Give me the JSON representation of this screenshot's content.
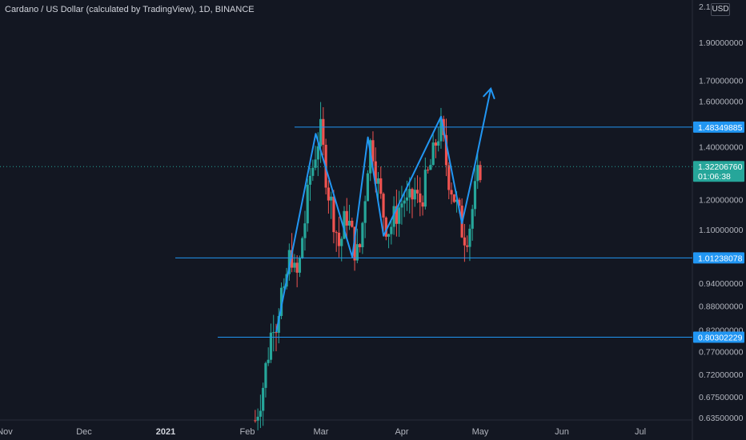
{
  "title": "Cardano / US Dollar (calculated by TradingView), 1D, BINANCE",
  "currency_button": "USD",
  "price_axis": {
    "ticks": [
      "2.1",
      "1.90000000",
      "1.70000000",
      "1.60000000",
      "1.40000000",
      "1.20000000",
      "1.10000000",
      "0.94000000",
      "0.88000000",
      "0.82000000",
      "0.77000000",
      "0.72000000",
      "0.67500000",
      "0.63500000"
    ],
    "tick_values": [
      2.1,
      1.9,
      1.7,
      1.6,
      1.4,
      1.2,
      1.1,
      0.94,
      0.88,
      0.82,
      0.77,
      0.72,
      0.675,
      0.635
    ]
  },
  "time_axis": {
    "ticks": [
      "Nov",
      "Dec",
      "2021",
      "Feb",
      "Mar",
      "Apr",
      "May",
      "Jun",
      "Jul"
    ]
  },
  "price_labels": [
    {
      "text": "1.48349885",
      "value": 1.48349885,
      "kind": "level"
    },
    {
      "text": "1.32206760",
      "sub": "01:06:38",
      "value": 1.3220676,
      "kind": "current"
    },
    {
      "text": "1.01238078",
      "value": 1.01238078,
      "kind": "level"
    },
    {
      "text": "0.80302229",
      "value": 0.80302229,
      "kind": "level"
    }
  ],
  "colors": {
    "background": "#131722",
    "bull": "#26a69a",
    "bear": "#ef5350",
    "drawing": "#2196f3",
    "axis_text": "#b2b5be",
    "current_line": "#26a69a"
  },
  "chart_data": {
    "type": "candlestick",
    "title": "Cardano / US Dollar (calculated by TradingView), 1D, BINANCE",
    "interval": "1D",
    "exchange": "BINANCE",
    "scale": "log",
    "ylim": [
      0.628,
      2.12
    ],
    "series": [
      {
        "name": "ADAUSD",
        "date_range": [
          "2021-02-04",
          "2021-05-01"
        ],
        "close_path": [
          0.63,
          0.66,
          0.69,
          0.74,
          0.79,
          0.85,
          0.84,
          0.92,
          0.89,
          1.0,
          1.03,
          0.95,
          0.97,
          1.08,
          1.15,
          1.28,
          1.33,
          1.42,
          1.46,
          1.35,
          1.24,
          1.18,
          1.12,
          1.05,
          1.08,
          1.16,
          1.11,
          1.06,
          1.02,
          1.05,
          1.18,
          1.34,
          1.44,
          1.33,
          1.24,
          1.17,
          1.12,
          1.1,
          1.13,
          1.16,
          1.18,
          1.21,
          1.17,
          1.2,
          1.23,
          1.18,
          1.22,
          1.26,
          1.31,
          1.36,
          1.44,
          1.48,
          1.4,
          1.3,
          1.25,
          1.2,
          1.15,
          1.1,
          1.08,
          1.11,
          1.18,
          1.26,
          1.32
        ]
      }
    ],
    "levels": [
      1.48349885,
      1.01238078,
      0.80302229
    ],
    "current_price": 1.3220676,
    "pattern_path": [
      {
        "date": "2021-02-12",
        "price": 0.815
      },
      {
        "date": "2021-02-27",
        "price": 1.455
      },
      {
        "date": "2021-03-13",
        "price": 1.015
      },
      {
        "date": "2021-03-19",
        "price": 1.44
      },
      {
        "date": "2021-03-25",
        "price": 1.08
      },
      {
        "date": "2021-04-16",
        "price": 1.53
      },
      {
        "date": "2021-04-24",
        "price": 1.12
      },
      {
        "date": "2021-04-29",
        "price": 1.33
      },
      {
        "date": "2021-05-05",
        "price": 1.66
      }
    ]
  }
}
